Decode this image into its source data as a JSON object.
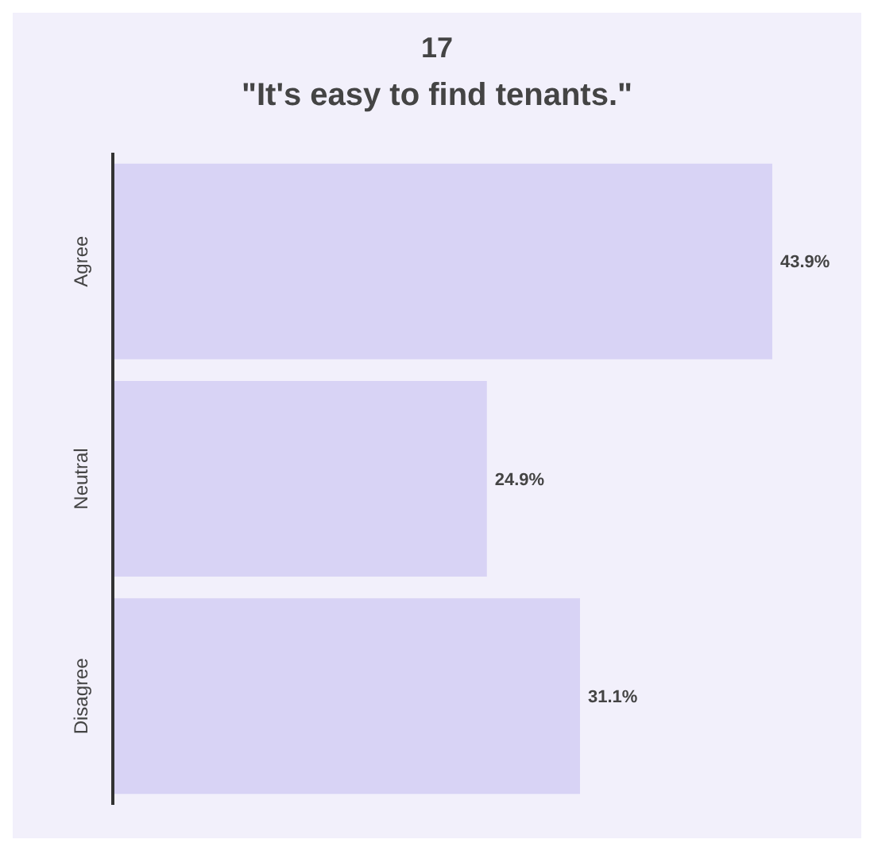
{
  "chart_data": {
    "type": "bar",
    "orientation": "horizontal",
    "title": "17",
    "subtitle": "\"It's easy to find tenants.\"",
    "categories": [
      "Agree",
      "Neutral",
      "Disagree"
    ],
    "values": [
      43.9,
      24.9,
      31.1
    ],
    "value_labels": [
      "43.9%",
      "24.9%",
      "31.1%"
    ],
    "color": "#d8d3f5"
  }
}
